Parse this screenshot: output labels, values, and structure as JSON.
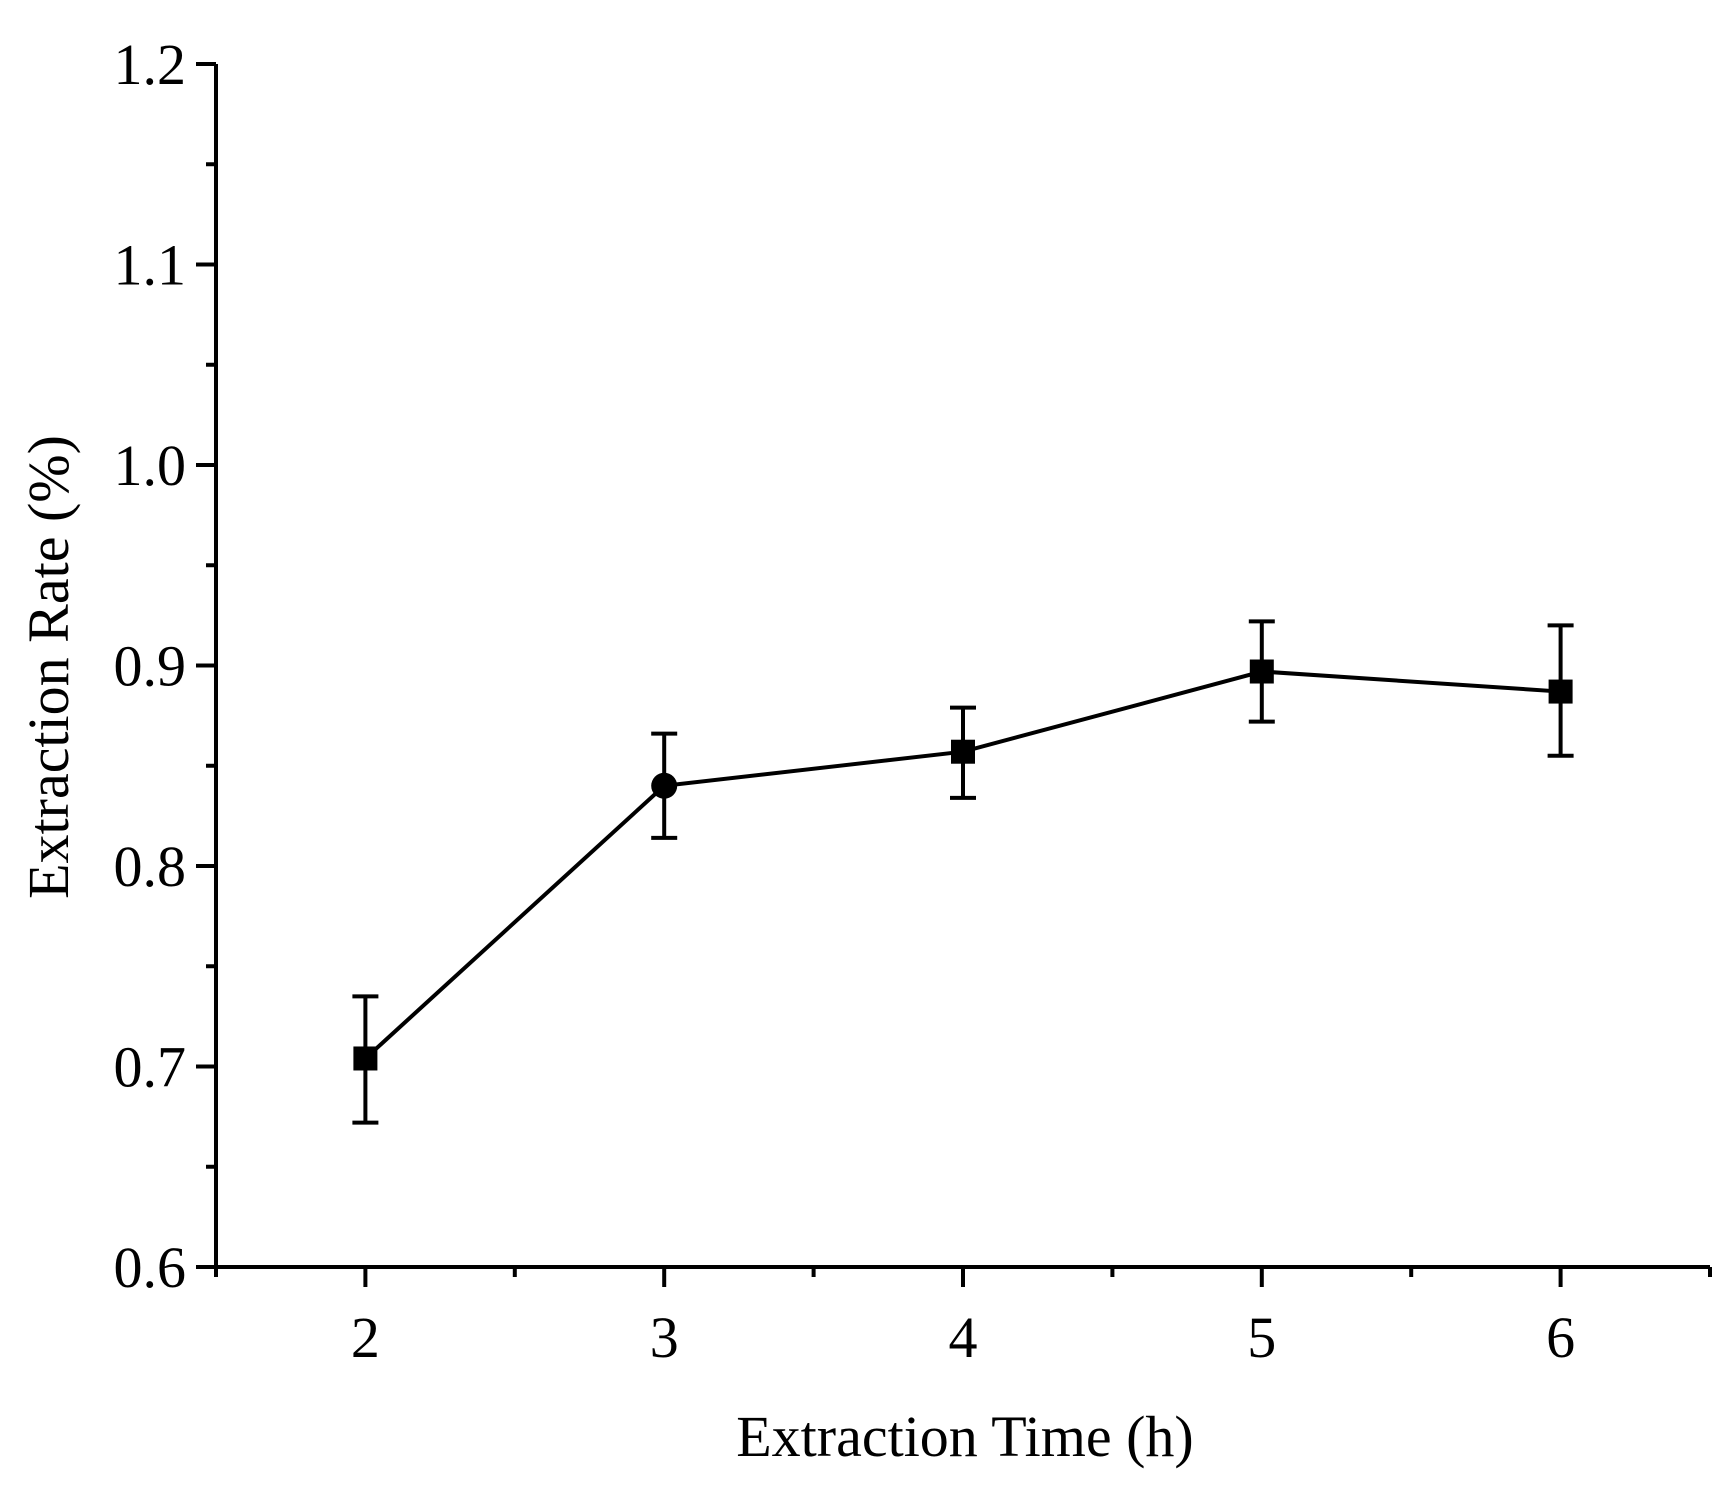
{
  "chart_data": {
    "type": "line",
    "title": "",
    "xlabel": "Extraction Time (h)",
    "ylabel": "Extraction Rate (%)",
    "xlim": [
      1.5,
      6.5
    ],
    "ylim": [
      0.6,
      1.2
    ],
    "x_ticks": [
      2,
      3,
      4,
      5,
      6
    ],
    "x_tick_labels": [
      "2",
      "3",
      "4",
      "5",
      "6"
    ],
    "x_minor_ticks": [
      1.5,
      2.5,
      3.5,
      4.5,
      5.5,
      6.5
    ],
    "y_ticks": [
      0.6,
      0.7,
      0.8,
      0.9,
      1.0,
      1.1,
      1.2
    ],
    "y_tick_labels": [
      "0.6",
      "0.7",
      "0.8",
      "0.9",
      "1.0",
      "1.1",
      "1.2"
    ],
    "y_minor_ticks": [
      0.65,
      0.75,
      0.85,
      0.95,
      1.05,
      1.15
    ],
    "grid": false,
    "legend": null,
    "series": [
      {
        "name": "Extraction Rate",
        "color": "#000000",
        "x": [
          2,
          3,
          4,
          5,
          6
        ],
        "y": [
          0.704,
          0.84,
          0.857,
          0.897,
          0.887
        ],
        "err_low": [
          0.672,
          0.814,
          0.834,
          0.872,
          0.855
        ],
        "err_high": [
          0.735,
          0.866,
          0.879,
          0.922,
          0.92
        ],
        "markers": [
          "square",
          "circle",
          "square",
          "square",
          "square"
        ]
      }
    ]
  }
}
